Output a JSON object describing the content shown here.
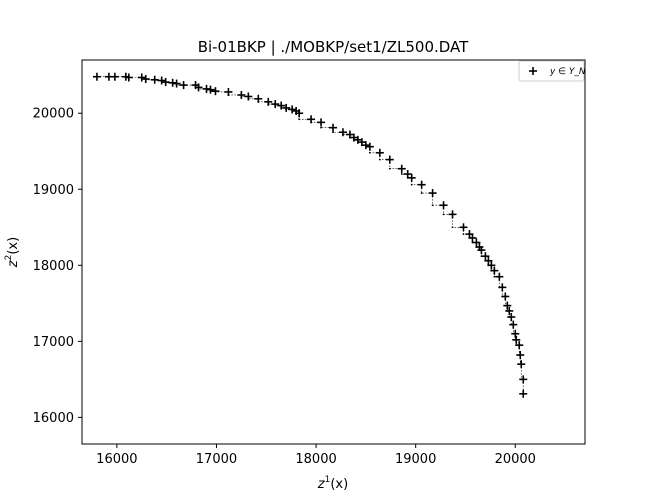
{
  "chart_data": {
    "type": "scatter",
    "title": "Bi-01BKP | ./MOBKP/set1/ZL500.DAT",
    "xlabel_base": "z",
    "xlabel_sup": "1",
    "xlabel_tail": "(x)",
    "ylabel_base": "z",
    "ylabel_sup": "2",
    "ylabel_tail": "(x)",
    "xlim": [
      15650,
      20700
    ],
    "ylim": [
      15650,
      20700
    ],
    "xticks": [
      16000,
      17000,
      18000,
      19000,
      20000
    ],
    "yticks": [
      16000,
      17000,
      18000,
      19000,
      20000
    ],
    "legend": {
      "label": "y ∈ Y_N",
      "placement": "top-right"
    },
    "series": [
      {
        "marker": "plus",
        "color": "#000000",
        "x": [
          15800,
          15920,
          15980,
          16090,
          16120,
          16250,
          16290,
          16380,
          16450,
          16490,
          16560,
          16600,
          16670,
          16790,
          16820,
          16900,
          16940,
          16990,
          17120,
          17250,
          17320,
          17420,
          17520,
          17590,
          17650,
          17700,
          17760,
          17800,
          17830,
          17950,
          18050,
          18170,
          18270,
          18340,
          18380,
          18420,
          18460,
          18500,
          18540,
          18640,
          18740,
          18860,
          18920,
          18960,
          19060,
          19170,
          19280,
          19370,
          19480,
          19540,
          19570,
          19610,
          19640,
          19660,
          19700,
          19730,
          19760,
          19790,
          19840,
          19870,
          19900,
          19920,
          19940,
          19960,
          19980,
          20000,
          20010,
          20040,
          20050,
          20060,
          20080,
          20080
        ],
        "y": [
          20480,
          20480,
          20480,
          20480,
          20470,
          20470,
          20450,
          20440,
          20430,
          20410,
          20400,
          20390,
          20370,
          20370,
          20340,
          20320,
          20310,
          20290,
          20280,
          20240,
          20220,
          20190,
          20150,
          20120,
          20100,
          20070,
          20050,
          20030,
          20000,
          19920,
          19880,
          19810,
          19750,
          19720,
          19680,
          19650,
          19620,
          19580,
          19560,
          19480,
          19390,
          19270,
          19200,
          19150,
          19060,
          18950,
          18790,
          18670,
          18500,
          18410,
          18360,
          18300,
          18240,
          18200,
          18120,
          18060,
          18000,
          17930,
          17850,
          17710,
          17590,
          17470,
          17400,
          17320,
          17220,
          17100,
          17020,
          16950,
          16820,
          16700,
          16500,
          16310
        ]
      }
    ]
  }
}
